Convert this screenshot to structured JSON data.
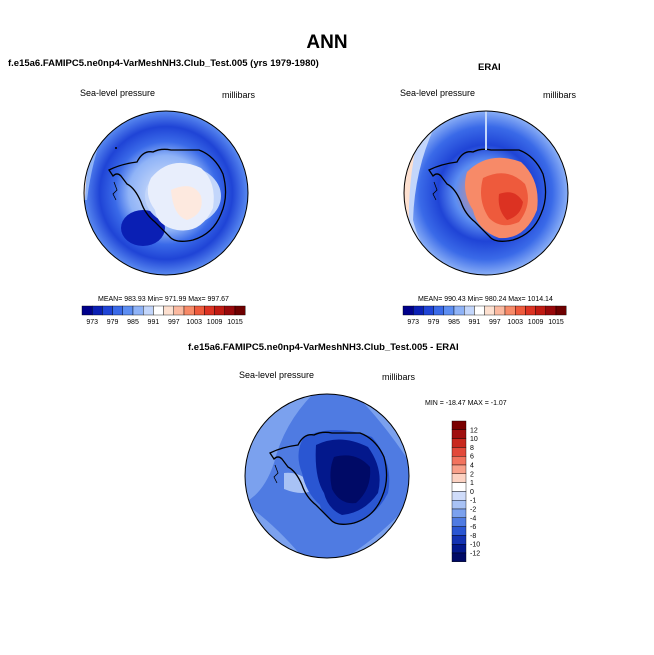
{
  "main_title": "ANN",
  "panels": [
    {
      "title": "f.e15a6.FAMIPC5.ne0np4-VarMeshNH3.Club_Test.005 (yrs 1979-1980)",
      "variable": "Sea-level pressure",
      "units": "millibars",
      "stats": "MEAN= 983.93  Min= 971.99  Max= 997.67",
      "colorbar_labels": [
        "973",
        "979",
        "985",
        "991",
        "997",
        "1003",
        "1009",
        "1015"
      ]
    },
    {
      "title": "ERAI",
      "variable": "Sea-level pressure",
      "units": "millibars",
      "stats": "MEAN= 990.43  Min= 980.24  Max= 1014.14",
      "colorbar_labels": [
        "973",
        "979",
        "985",
        "991",
        "997",
        "1003",
        "1009",
        "1015"
      ]
    },
    {
      "title": "f.e15a6.FAMIPC5.ne0np4-VarMeshNH3.Club_Test.005 - ERAI",
      "variable": "Sea-level pressure",
      "units": "millibars",
      "stats": "MIN = -18.47  MAX =  -1.07",
      "colorbar_labels": [
        "12",
        "10",
        "8",
        "6",
        "4",
        "2",
        "1",
        "0",
        "-1",
        "-2",
        "-4",
        "-6",
        "-8",
        "-10",
        "-12"
      ]
    }
  ],
  "colors": {
    "abs_scale": [
      "#00008b",
      "#0a1fb4",
      "#1f44d6",
      "#3a6ae8",
      "#5d8ef2",
      "#8fb3f7",
      "#c3d6fb",
      "#ffffff",
      "#fde0d0",
      "#fbb9a0",
      "#f78a68",
      "#ee5a3c",
      "#dc3222",
      "#c01a12",
      "#98080a",
      "#6e0000"
    ],
    "diff_scale": [
      "#7a0000",
      "#a00f0f",
      "#c8281e",
      "#e2493a",
      "#f2735e",
      "#f8a08a",
      "#fcd2c2",
      "#ffffff",
      "#cfdcfa",
      "#a8c2f5",
      "#7ba1ee",
      "#4f7be2",
      "#2a56d2",
      "#1332b2",
      "#03188c",
      "#000a66"
    ]
  }
}
